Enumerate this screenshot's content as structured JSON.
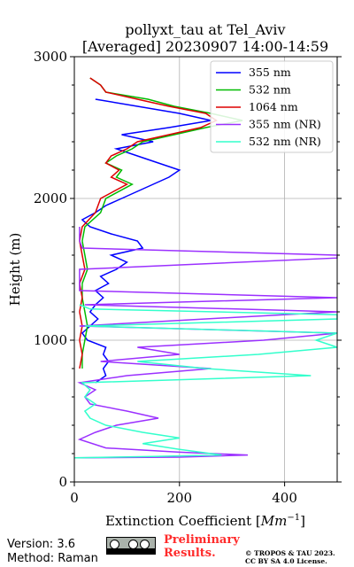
{
  "chart_data": {
    "type": "line",
    "title": "pollyxt_tau at Tel_Aviv",
    "subtitle": "[Averaged] 20230907 14:00-14:59",
    "xlabel": "Extinction Coefficient [Mm^-1]",
    "xlabel_text": "Extinction Coefficient [",
    "xlabel_unit": "Mm",
    "xlabel_exp": "−1",
    "xlabel_close": "]",
    "ylabel": "Height (m)",
    "xlim": [
      0,
      500
    ],
    "ylim": [
      0,
      3000
    ],
    "xticks": [
      "0",
      "200",
      "400"
    ],
    "xtick_values": [
      0,
      200,
      400
    ],
    "yticks": [
      "0",
      "1000",
      "2000",
      "3000"
    ],
    "ytick_values": [
      0,
      1000,
      2000,
      3000
    ],
    "grid": true,
    "legend_position": "top-right",
    "series": [
      {
        "name": "355 nm",
        "color": "#0000ff",
        "points": [
          [
            40,
            700
          ],
          [
            60,
            750
          ],
          [
            55,
            800
          ],
          [
            65,
            850
          ],
          [
            55,
            900
          ],
          [
            60,
            950
          ],
          [
            25,
            1000
          ],
          [
            15,
            1050
          ],
          [
            30,
            1100
          ],
          [
            45,
            1150
          ],
          [
            30,
            1200
          ],
          [
            40,
            1250
          ],
          [
            55,
            1300
          ],
          [
            40,
            1350
          ],
          [
            65,
            1400
          ],
          [
            50,
            1450
          ],
          [
            80,
            1500
          ],
          [
            100,
            1550
          ],
          [
            70,
            1600
          ],
          [
            130,
            1650
          ],
          [
            120,
            1700
          ],
          [
            70,
            1750
          ],
          [
            30,
            1800
          ],
          [
            15,
            1850
          ],
          [
            40,
            1900
          ],
          [
            60,
            1950
          ],
          [
            90,
            2000
          ],
          [
            120,
            2050
          ],
          [
            150,
            2100
          ],
          [
            180,
            2150
          ],
          [
            200,
            2200
          ],
          [
            160,
            2250
          ],
          [
            120,
            2300
          ],
          [
            80,
            2350
          ],
          [
            150,
            2400
          ],
          [
            90,
            2450
          ],
          [
            180,
            2500
          ],
          [
            260,
            2550
          ],
          [
            200,
            2600
          ],
          [
            120,
            2650
          ],
          [
            40,
            2700
          ]
        ]
      },
      {
        "name": "532 nm",
        "color": "#00bb00",
        "points": [
          [
            15,
            800
          ],
          [
            15,
            900
          ],
          [
            20,
            1000
          ],
          [
            25,
            1100
          ],
          [
            20,
            1200
          ],
          [
            15,
            1300
          ],
          [
            15,
            1400
          ],
          [
            25,
            1500
          ],
          [
            20,
            1600
          ],
          [
            15,
            1700
          ],
          [
            20,
            1800
          ],
          [
            50,
            1900
          ],
          [
            60,
            2000
          ],
          [
            110,
            2100
          ],
          [
            80,
            2150
          ],
          [
            90,
            2200
          ],
          [
            60,
            2250
          ],
          [
            80,
            2300
          ],
          [
            110,
            2350
          ],
          [
            130,
            2400
          ],
          [
            190,
            2450
          ],
          [
            250,
            2500
          ],
          [
            320,
            2550
          ],
          [
            260,
            2600
          ],
          [
            190,
            2650
          ],
          [
            140,
            2700
          ],
          [
            60,
            2750
          ],
          [
            50,
            2800
          ],
          [
            30,
            2850
          ]
        ]
      },
      {
        "name": "1064 nm",
        "color": "#dd0000",
        "points": [
          [
            10,
            800
          ],
          [
            15,
            900
          ],
          [
            10,
            1000
          ],
          [
            15,
            1100
          ],
          [
            10,
            1200
          ],
          [
            15,
            1300
          ],
          [
            10,
            1400
          ],
          [
            20,
            1500
          ],
          [
            15,
            1600
          ],
          [
            10,
            1700
          ],
          [
            15,
            1800
          ],
          [
            40,
            1900
          ],
          [
            50,
            2000
          ],
          [
            100,
            2100
          ],
          [
            70,
            2150
          ],
          [
            85,
            2200
          ],
          [
            60,
            2250
          ],
          [
            70,
            2300
          ],
          [
            100,
            2350
          ],
          [
            120,
            2400
          ],
          [
            180,
            2450
          ],
          [
            240,
            2500
          ],
          [
            270,
            2550
          ],
          [
            250,
            2600
          ],
          [
            180,
            2650
          ],
          [
            120,
            2700
          ],
          [
            60,
            2750
          ],
          [
            50,
            2800
          ],
          [
            30,
            2850
          ]
        ]
      },
      {
        "name": "355 nm (NR)",
        "color": "#9b30ff",
        "points": [
          [
            0,
            170
          ],
          [
            200,
            175
          ],
          [
            330,
            190
          ],
          [
            200,
            210
          ],
          [
            60,
            240
          ],
          [
            10,
            300
          ],
          [
            40,
            350
          ],
          [
            80,
            400
          ],
          [
            160,
            450
          ],
          [
            100,
            500
          ],
          [
            30,
            550
          ],
          [
            20,
            600
          ],
          [
            40,
            650
          ],
          [
            10,
            700
          ],
          [
            100,
            750
          ],
          [
            260,
            800
          ],
          [
            50,
            850
          ],
          [
            200,
            900
          ],
          [
            120,
            950
          ],
          [
            360,
            1000
          ],
          [
            500,
            1050
          ],
          [
            10,
            1100
          ],
          [
            250,
            1150
          ],
          [
            500,
            1200
          ],
          [
            20,
            1250
          ],
          [
            500,
            1300
          ],
          [
            10,
            1350
          ],
          [
            10,
            1500
          ],
          [
            500,
            1580
          ],
          [
            500,
            1600
          ],
          [
            15,
            1650
          ],
          [
            10,
            1700
          ],
          [
            10,
            1800
          ]
        ]
      },
      {
        "name": "532 nm (NR)",
        "color": "#33ffcc",
        "points": [
          [
            0,
            170
          ],
          [
            150,
            180
          ],
          [
            280,
            190
          ],
          [
            200,
            230
          ],
          [
            130,
            270
          ],
          [
            200,
            310
          ],
          [
            130,
            350
          ],
          [
            60,
            400
          ],
          [
            30,
            450
          ],
          [
            20,
            500
          ],
          [
            40,
            550
          ],
          [
            20,
            600
          ],
          [
            30,
            650
          ],
          [
            15,
            700
          ],
          [
            450,
            750
          ],
          [
            250,
            800
          ],
          [
            120,
            850
          ],
          [
            350,
            900
          ],
          [
            500,
            950
          ],
          [
            460,
            1000
          ],
          [
            500,
            1050
          ],
          [
            20,
            1100
          ],
          [
            500,
            1150
          ],
          [
            500,
            1180
          ],
          [
            30,
            1220
          ],
          [
            10,
            1250
          ]
        ]
      }
    ]
  },
  "footer": {
    "version": "Version: 3.6",
    "method": "Method: Raman",
    "preliminary_line1": "Preliminary",
    "preliminary_line2": "Results.",
    "copyright_line1": "© TROPOS & TAU 2023.",
    "copyright_line2": "CC BY SA 4.0 License.",
    "license_badge": "CC BY SA"
  }
}
